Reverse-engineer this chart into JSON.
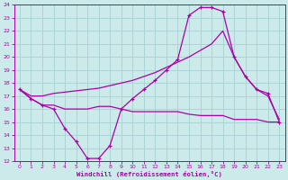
{
  "xlabel": "Windchill (Refroidissement éolien,°C)",
  "bg_color": "#cceaea",
  "grid_color": "#aad4d4",
  "line_color": "#aa00aa",
  "xlim": [
    -0.5,
    23.5
  ],
  "ylim": [
    12,
    24
  ],
  "xticks": [
    0,
    1,
    2,
    3,
    4,
    5,
    6,
    7,
    8,
    9,
    10,
    11,
    12,
    13,
    14,
    15,
    16,
    17,
    18,
    19,
    20,
    21,
    22,
    23
  ],
  "yticks": [
    12,
    13,
    14,
    15,
    16,
    17,
    18,
    19,
    20,
    21,
    22,
    23,
    24
  ],
  "line1_x": [
    0,
    1,
    2,
    3,
    4,
    5,
    6,
    7,
    8,
    9,
    10,
    11,
    12,
    13,
    14,
    15,
    16,
    17,
    18,
    19,
    20,
    21,
    22,
    23
  ],
  "line1_y": [
    17.5,
    16.8,
    16.3,
    16.0,
    14.5,
    13.5,
    12.2,
    12.2,
    13.2,
    16.0,
    16.8,
    17.5,
    18.2,
    19.0,
    19.8,
    23.2,
    23.8,
    23.8,
    23.5,
    20.0,
    18.5,
    17.5,
    17.2,
    15.0
  ],
  "line2_x": [
    0,
    1,
    2,
    3,
    4,
    5,
    6,
    7,
    8,
    9,
    10,
    11,
    12,
    13,
    14,
    15,
    16,
    17,
    18,
    19,
    20,
    21,
    22,
    23
  ],
  "line2_y": [
    17.5,
    17.0,
    17.0,
    17.2,
    17.3,
    17.4,
    17.5,
    17.6,
    17.8,
    18.0,
    18.2,
    18.5,
    18.8,
    19.2,
    19.6,
    20.0,
    20.5,
    21.0,
    22.0,
    20.0,
    18.5,
    17.5,
    17.0,
    15.2
  ],
  "line3_x": [
    0,
    1,
    2,
    3,
    4,
    5,
    6,
    7,
    8,
    9,
    10,
    11,
    12,
    13,
    14,
    15,
    16,
    17,
    18,
    19,
    20,
    21,
    22,
    23
  ],
  "line3_y": [
    17.5,
    16.8,
    16.3,
    16.3,
    16.0,
    16.0,
    16.0,
    16.2,
    16.2,
    16.0,
    15.8,
    15.8,
    15.8,
    15.8,
    15.8,
    15.6,
    15.5,
    15.5,
    15.5,
    15.2,
    15.2,
    15.2,
    15.0,
    15.0
  ]
}
